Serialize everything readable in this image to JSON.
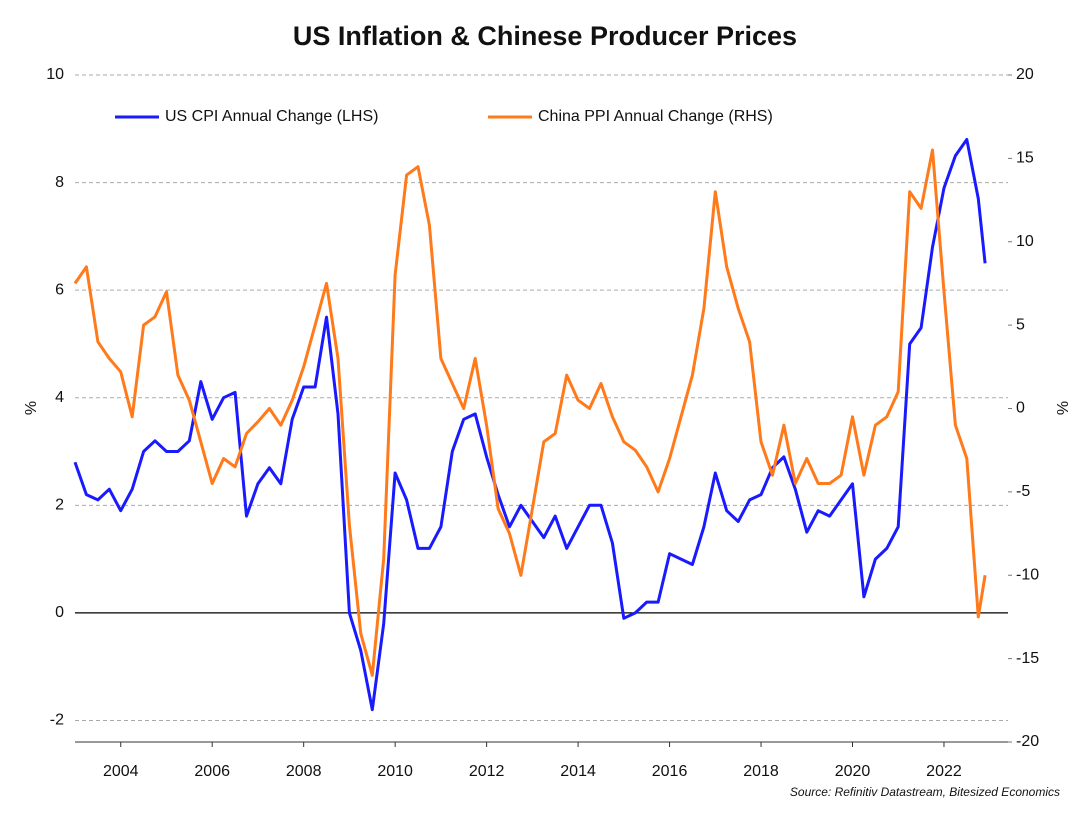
{
  "chart_data": {
    "type": "line",
    "title": "US Inflation & Chinese Producer Prices",
    "source": "Source: Refinitiv Datastream, Bitesized Economics",
    "ylabel": "%",
    "y2label": "%",
    "x": [
      2003,
      2003.25,
      2003.5,
      2003.75,
      2004,
      2004.25,
      2004.5,
      2004.75,
      2005,
      2005.25,
      2005.5,
      2005.75,
      2006,
      2006.25,
      2006.5,
      2006.75,
      2007,
      2007.25,
      2007.5,
      2007.75,
      2008,
      2008.25,
      2008.5,
      2008.75,
      2009,
      2009.25,
      2009.5,
      2009.75,
      2010,
      2010.25,
      2010.5,
      2010.75,
      2011,
      2011.25,
      2011.5,
      2011.75,
      2012,
      2012.25,
      2012.5,
      2012.75,
      2013,
      2013.25,
      2013.5,
      2013.75,
      2014,
      2014.25,
      2014.5,
      2014.75,
      2015,
      2015.25,
      2015.5,
      2015.75,
      2016,
      2016.25,
      2016.5,
      2016.75,
      2017,
      2017.25,
      2017.5,
      2017.75,
      2018,
      2018.25,
      2018.5,
      2018.75,
      2019,
      2019.25,
      2019.5,
      2019.75,
      2020,
      2020.25,
      2020.5,
      2020.75,
      2021,
      2021.25,
      2021.5,
      2021.75,
      2022,
      2022.25,
      2022.5,
      2022.75,
      2022.9
    ],
    "series": [
      {
        "name": "US CPI Annual Change (LHS)",
        "color": "#1a1aff",
        "axis": "y",
        "values": [
          2.8,
          2.2,
          2.1,
          2.3,
          1.9,
          2.3,
          3.0,
          3.2,
          3.0,
          3.0,
          3.2,
          4.3,
          3.6,
          4.0,
          4.1,
          1.8,
          2.4,
          2.7,
          2.4,
          3.6,
          4.2,
          4.2,
          5.5,
          3.7,
          0.0,
          -0.7,
          -1.8,
          -0.2,
          2.6,
          2.1,
          1.2,
          1.2,
          1.6,
          3.0,
          3.6,
          3.7,
          2.9,
          2.2,
          1.6,
          2.0,
          1.7,
          1.4,
          1.8,
          1.2,
          1.6,
          2.0,
          2.0,
          1.3,
          -0.1,
          0.0,
          0.2,
          0.2,
          1.1,
          1.0,
          0.9,
          1.6,
          2.6,
          1.9,
          1.7,
          2.1,
          2.2,
          2.7,
          2.9,
          2.3,
          1.5,
          1.9,
          1.8,
          2.1,
          2.4,
          0.3,
          1.0,
          1.2,
          1.6,
          5.0,
          5.3,
          6.8,
          7.9,
          8.5,
          8.8,
          7.7,
          6.5
        ]
      },
      {
        "name": "China PPI Annual Change (RHS)",
        "color": "#ff7a1a",
        "axis": "y2",
        "values": [
          7.5,
          8.5,
          4,
          3,
          2.2,
          -0.5,
          5,
          5.5,
          7,
          2,
          0.5,
          -2,
          -4.5,
          -3,
          -3.5,
          -1.5,
          -0.8,
          0,
          -1.0,
          0.5,
          2.5,
          5,
          7.5,
          3,
          -7,
          -13.5,
          -16,
          -9,
          8,
          14,
          14.5,
          11,
          3,
          1.5,
          0,
          3,
          -1,
          -6,
          -7.5,
          -10,
          -6,
          -2,
          -1.5,
          2,
          0.5,
          0,
          1.5,
          -0.5,
          -2,
          -2.5,
          -3.5,
          -5,
          -3,
          -0.5,
          2,
          6,
          13,
          8.5,
          6,
          4,
          -2,
          -4,
          -1,
          -4.5,
          -3,
          -4.5,
          -4.5,
          -4,
          -0.5,
          -4,
          -1,
          -0.5,
          1,
          13,
          12,
          15.5,
          7,
          -1,
          -3,
          -12.5,
          -10
        ]
      }
    ],
    "xlim": [
      2003,
      2023.4
    ],
    "xticks": [
      2004,
      2006,
      2008,
      2010,
      2012,
      2014,
      2016,
      2018,
      2020,
      2022
    ],
    "ylim": [
      -2.4,
      10
    ],
    "yticks": [
      -2,
      0,
      2,
      4,
      6,
      8,
      10
    ],
    "y2lim": [
      -20,
      20
    ],
    "y2ticks": [
      -20,
      -15,
      -10,
      -5,
      0,
      5,
      10,
      15,
      20
    ],
    "grid": true,
    "legend": "top"
  }
}
